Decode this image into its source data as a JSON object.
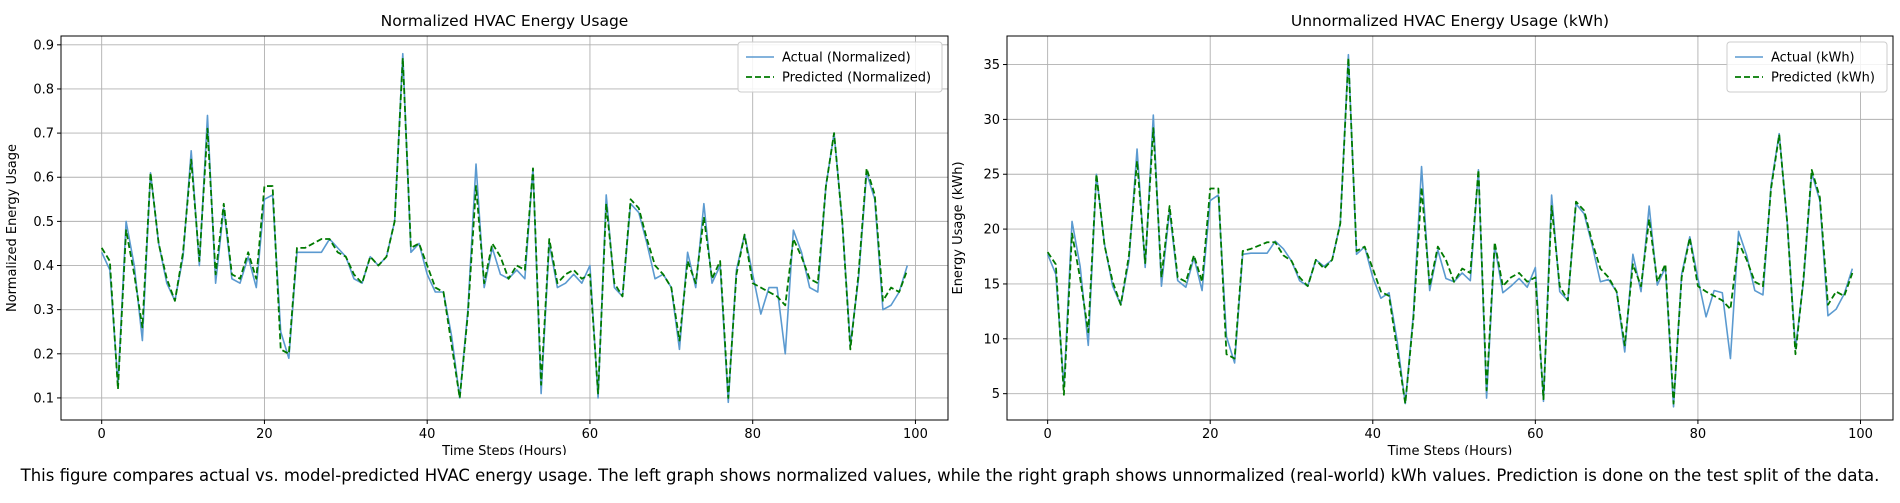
{
  "caption": "This figure compares actual vs. model-predicted HVAC energy usage. The left graph shows normalized values, while the right graph shows unnormalized (real-world) kWh values. Prediction is done on the test split of the data.",
  "colors": {
    "actual": "#5b9ad0",
    "predicted": "#007a00",
    "grid": "#b0b0b0"
  },
  "chart_data": [
    {
      "type": "line",
      "title": "Normalized HVAC Energy Usage",
      "xlabel": "Time Steps (Hours)",
      "ylabel": "Normalized Energy Usage",
      "xlim": [
        -5,
        104
      ],
      "ylim": [
        0.05,
        0.92
      ],
      "xticks": [
        0,
        20,
        40,
        60,
        80,
        100
      ],
      "yticks": [
        0.1,
        0.2,
        0.3,
        0.4,
        0.5,
        0.6,
        0.7,
        0.8,
        0.9
      ],
      "grid": true,
      "legend_position": "top-right",
      "series": [
        {
          "name": "Actual (Normalized)",
          "style": "solid",
          "color": "#5b9ad0",
          "values": [
            0.43,
            0.39,
            0.13,
            0.5,
            0.4,
            0.23,
            0.61,
            0.45,
            0.36,
            0.32,
            0.42,
            0.66,
            0.4,
            0.74,
            0.36,
            0.53,
            0.37,
            0.36,
            0.42,
            0.35,
            0.55,
            0.56,
            0.25,
            0.19,
            0.43,
            0.43,
            0.43,
            0.43,
            0.46,
            0.44,
            0.42,
            0.37,
            0.36,
            0.42,
            0.4,
            0.42,
            0.5,
            0.88,
            0.43,
            0.45,
            0.38,
            0.34,
            0.34,
            0.24,
            0.1,
            0.3,
            0.63,
            0.35,
            0.44,
            0.38,
            0.37,
            0.39,
            0.37,
            0.62,
            0.11,
            0.45,
            0.35,
            0.36,
            0.38,
            0.36,
            0.4,
            0.1,
            0.56,
            0.35,
            0.33,
            0.54,
            0.52,
            0.45,
            0.37,
            0.38,
            0.35,
            0.21,
            0.43,
            0.35,
            0.54,
            0.36,
            0.4,
            0.09,
            0.39,
            0.47,
            0.38,
            0.29,
            0.35,
            0.35,
            0.2,
            0.48,
            0.43,
            0.35,
            0.34,
            0.58,
            0.7,
            0.5,
            0.22,
            0.37,
            0.61,
            0.55,
            0.3,
            0.31,
            0.34,
            0.4
          ]
        },
        {
          "name": "Predicted (Normalized)",
          "style": "dashed",
          "color": "#007a00",
          "values": [
            0.44,
            0.41,
            0.12,
            0.48,
            0.38,
            0.26,
            0.61,
            0.45,
            0.37,
            0.32,
            0.43,
            0.64,
            0.41,
            0.71,
            0.38,
            0.54,
            0.38,
            0.37,
            0.43,
            0.37,
            0.58,
            0.58,
            0.21,
            0.2,
            0.44,
            0.44,
            0.45,
            0.46,
            0.46,
            0.43,
            0.42,
            0.38,
            0.36,
            0.42,
            0.4,
            0.42,
            0.5,
            0.87,
            0.44,
            0.45,
            0.4,
            0.35,
            0.34,
            0.22,
            0.1,
            0.29,
            0.58,
            0.36,
            0.45,
            0.42,
            0.37,
            0.4,
            0.39,
            0.62,
            0.13,
            0.46,
            0.36,
            0.38,
            0.39,
            0.37,
            0.38,
            0.11,
            0.54,
            0.36,
            0.33,
            0.55,
            0.53,
            0.46,
            0.4,
            0.38,
            0.35,
            0.23,
            0.41,
            0.36,
            0.51,
            0.37,
            0.41,
            0.1,
            0.38,
            0.47,
            0.36,
            0.35,
            0.34,
            0.33,
            0.31,
            0.46,
            0.42,
            0.37,
            0.36,
            0.58,
            0.7,
            0.5,
            0.21,
            0.38,
            0.62,
            0.56,
            0.32,
            0.35,
            0.34,
            0.39
          ]
        }
      ]
    },
    {
      "type": "line",
      "title": "Unnormalized HVAC Energy Usage (kWh)",
      "xlabel": "Time Steps (Hours)",
      "ylabel": "Energy Usage (kWh)",
      "xlim": [
        -5,
        104
      ],
      "ylim": [
        2.6,
        37.6
      ],
      "xticks": [
        0,
        20,
        40,
        60,
        80,
        100
      ],
      "yticks": [
        5,
        10,
        15,
        20,
        25,
        30,
        35
      ],
      "grid": true,
      "legend_position": "top-right",
      "series": [
        {
          "name": "Actual (kWh)",
          "style": "solid",
          "color": "#5b9ad0",
          "values": [
            17.7,
            15.9,
            5.6,
            20.7,
            16.6,
            9.4,
            25.0,
            18.6,
            14.8,
            13.1,
            17.1,
            27.3,
            16.5,
            30.4,
            14.8,
            21.7,
            15.3,
            14.7,
            17.4,
            14.4,
            22.6,
            23.1,
            10.2,
            7.8,
            17.7,
            17.8,
            17.8,
            17.8,
            18.9,
            18.2,
            17.1,
            15.3,
            14.8,
            17.2,
            16.6,
            17.2,
            20.5,
            35.9,
            17.7,
            18.4,
            15.6,
            13.7,
            14.2,
            9.8,
            4.1,
            12.3,
            25.7,
            14.4,
            18.1,
            15.5,
            15.2,
            16.0,
            15.3,
            25.4,
            4.6,
            18.5,
            14.2,
            14.8,
            15.5,
            14.7,
            16.5,
            4.3,
            23.1,
            14.3,
            13.5,
            22.3,
            21.4,
            18.5,
            15.2,
            15.4,
            14.3,
            8.8,
            17.7,
            14.3,
            22.1,
            14.9,
            16.5,
            3.8,
            15.9,
            19.3,
            15.5,
            12.0,
            14.4,
            14.2,
            8.2,
            19.8,
            17.6,
            14.4,
            14.0,
            24.0,
            28.7,
            20.5,
            9.1,
            15.3,
            25.1,
            22.6,
            12.1,
            12.7,
            14.1,
            16.4
          ]
        },
        {
          "name": "Predicted (kWh)",
          "style": "dashed",
          "color": "#007a00",
          "values": [
            17.9,
            16.8,
            4.9,
            19.6,
            15.5,
            10.6,
            25.0,
            18.5,
            15.2,
            13.1,
            17.6,
            26.2,
            16.9,
            29.2,
            15.6,
            22.1,
            15.6,
            15.2,
            17.6,
            15.2,
            23.7,
            23.7,
            8.6,
            8.2,
            18.0,
            18.2,
            18.5,
            18.8,
            18.8,
            17.6,
            17.1,
            15.6,
            14.8,
            17.2,
            16.4,
            17.2,
            20.5,
            35.6,
            18.0,
            18.4,
            16.4,
            14.3,
            13.9,
            9.0,
            4.1,
            11.9,
            23.8,
            14.8,
            18.4,
            17.2,
            15.2,
            16.4,
            16.0,
            25.4,
            5.3,
            18.8,
            14.8,
            15.6,
            16.0,
            15.2,
            15.6,
            4.5,
            22.1,
            14.8,
            13.5,
            22.5,
            21.7,
            18.8,
            16.4,
            15.6,
            14.3,
            9.4,
            16.8,
            14.8,
            20.9,
            15.2,
            16.8,
            4.1,
            15.6,
            19.2,
            14.8,
            14.3,
            13.9,
            13.5,
            12.7,
            18.8,
            17.2,
            15.2,
            14.8,
            23.7,
            28.6,
            20.5,
            8.6,
            15.6,
            25.4,
            22.9,
            13.1,
            14.3,
            13.9,
            16.0
          ]
        }
      ]
    }
  ]
}
